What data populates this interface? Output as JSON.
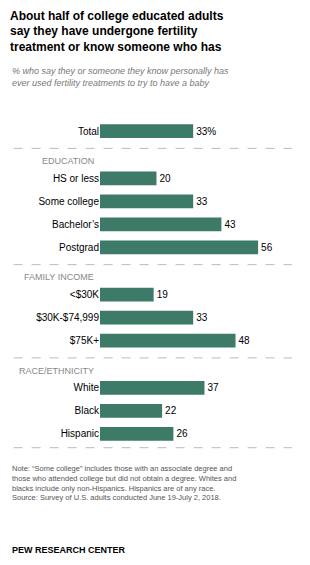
{
  "chart_data": {
    "type": "bar",
    "orientation": "horizontal",
    "title": "About half of college educated adults\nsay they have undergone fertility\ntreatment or know someone who has",
    "subtitle": "% who say they or someone they know personally has\never used fertility treatments to try to have a baby",
    "categories": [
      "Total",
      "HS or less",
      "Some college",
      "Bachelor’s",
      "Postgrad",
      "<$30K",
      "$30K-$74,999",
      "$75K+",
      "White",
      "Black",
      "Hispanic"
    ],
    "values": [
      33,
      20,
      33,
      43,
      56,
      19,
      33,
      48,
      37,
      22,
      26
    ],
    "value_labels": [
      "33%",
      "20",
      "33",
      "43",
      "56",
      "19",
      "33",
      "48",
      "37",
      "22",
      "26"
    ],
    "data_labels": true,
    "color": "#3d7a68",
    "xlim": [
      0,
      68
    ],
    "tick_labels": "y",
    "grid": false,
    "annotations": [
      "EDUCATION",
      "FAMILY INCOME",
      "RACE/ETHNICITY"
    ],
    "note": "Note: “Some college” includes those with an associate degree and\nthose who attended college but did not obtain a degree. Whites and\nblacks include only non-Hispanics. Hispanics are of any race.\nSource: Survey of U.S. adults conducted June 19-July 2, 2018.",
    "source": "PEW RESEARCH CENTER"
  }
}
